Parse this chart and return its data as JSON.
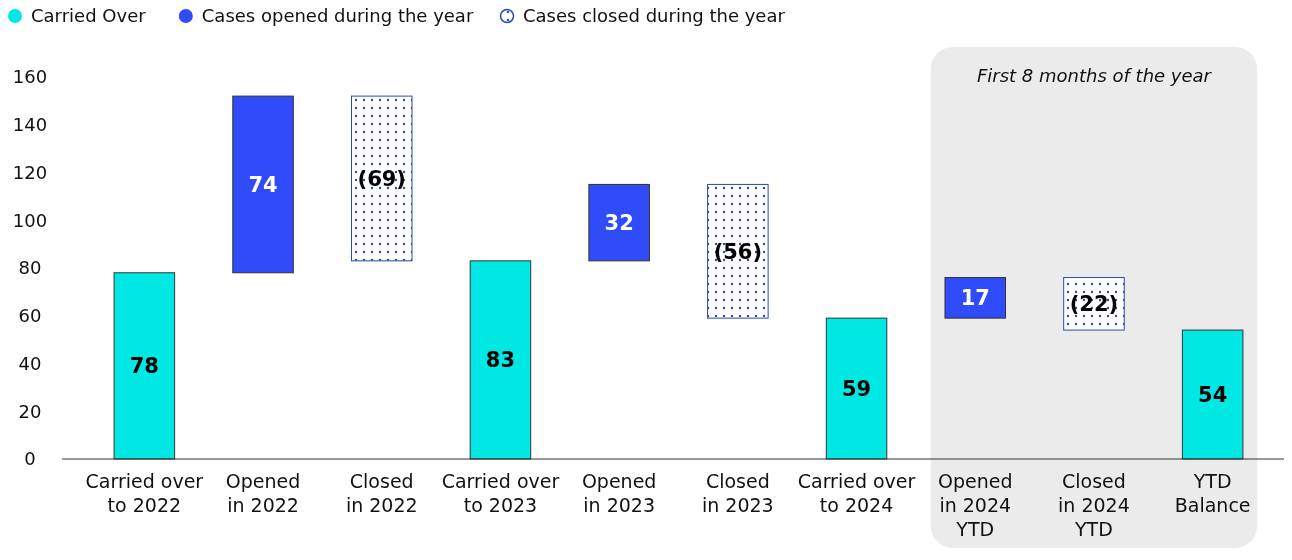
{
  "chart_data": {
    "type": "bar",
    "categories": [
      "Carried over\nto 2022",
      "Opened\nin 2022",
      "Closed\nin 2022",
      "Carried over\nto 2023",
      "Opened\nin 2023",
      "Closed\nin 2023",
      "Carried over\nto 2024",
      "Opened\nin 2024\nYTD",
      "Closed\nin 2024\nYTD",
      "YTD\nBalance"
    ],
    "series": [
      {
        "name": "Carried Over",
        "color": "#00e8e4",
        "values": [
          78,
          null,
          null,
          83,
          null,
          null,
          59,
          null,
          null,
          54
        ],
        "base": [
          0,
          null,
          null,
          0,
          null,
          null,
          0,
          null,
          null,
          0
        ],
        "value_labels": [
          "78",
          null,
          null,
          "83",
          null,
          null,
          "59",
          null,
          null,
          "54"
        ]
      },
      {
        "name": "Cases opened during the year",
        "color": "#2f4bfa",
        "values": [
          null,
          74,
          null,
          null,
          32,
          null,
          null,
          17,
          null,
          null
        ],
        "base": [
          null,
          78,
          null,
          null,
          83,
          null,
          null,
          59,
          null,
          null
        ],
        "value_labels": [
          null,
          "74",
          null,
          null,
          "32",
          null,
          null,
          "17",
          null,
          null
        ]
      },
      {
        "name": "Cases closed during the year",
        "color": "#2a4ab0",
        "values": [
          null,
          null,
          -69,
          null,
          null,
          -56,
          null,
          null,
          -22,
          null
        ],
        "base": [
          null,
          null,
          152,
          null,
          null,
          115,
          null,
          null,
          76,
          null
        ],
        "value_labels": [
          null,
          null,
          "(69)",
          null,
          null,
          "(56)",
          null,
          null,
          "(22)",
          null
        ]
      }
    ],
    "ylim": [
      0,
      160
    ],
    "yticks": [
      0,
      20,
      40,
      60,
      80,
      100,
      120,
      140,
      160
    ],
    "bands": [
      {
        "axis": "x",
        "from": "Opened\nin 2024\nYTD",
        "to": "YTD\nBalance",
        "label": "First 8 months of the year",
        "color": "#ebebeb"
      }
    ],
    "legend": "top left",
    "grid": false
  }
}
